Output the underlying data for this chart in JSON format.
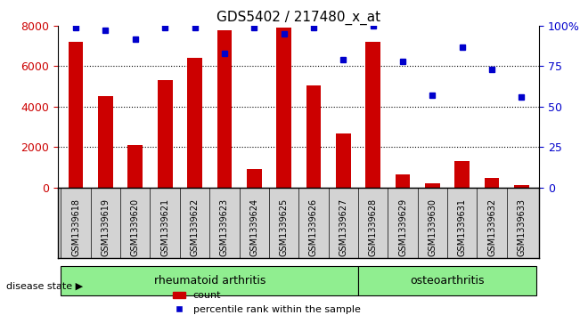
{
  "title": "GDS5402 / 217480_x_at",
  "samples": [
    "GSM1339618",
    "GSM1339619",
    "GSM1339620",
    "GSM1339621",
    "GSM1339622",
    "GSM1339623",
    "GSM1339624",
    "GSM1339625",
    "GSM1339626",
    "GSM1339627",
    "GSM1339628",
    "GSM1339629",
    "GSM1339630",
    "GSM1339631",
    "GSM1339632",
    "GSM1339633"
  ],
  "counts": [
    7200,
    4500,
    2100,
    5300,
    6400,
    7800,
    900,
    7900,
    5050,
    2650,
    7200,
    650,
    200,
    1300,
    450,
    100
  ],
  "percentiles": [
    99,
    97,
    92,
    99,
    99,
    83,
    99,
    95,
    99,
    79,
    100,
    78,
    57,
    87,
    73,
    56
  ],
  "groups": [
    {
      "label": "rheumatoid arthritis",
      "start": 0,
      "end": 10,
      "color": "#90ee90"
    },
    {
      "label": "osteoarthritis",
      "start": 10,
      "end": 16,
      "color": "#90ee90"
    }
  ],
  "bar_color": "#cc0000",
  "dot_color": "#0000cc",
  "ylim_left": [
    0,
    8000
  ],
  "ylim_right": [
    0,
    100
  ],
  "yticks_left": [
    0,
    2000,
    4000,
    6000,
    8000
  ],
  "yticks_right": [
    0,
    25,
    50,
    75,
    100
  ],
  "grid_color": "#000000",
  "bg_color": "#ffffff",
  "tick_label_color_left": "#cc0000",
  "tick_label_color_right": "#0000cc",
  "disease_state_label": "disease state",
  "legend_count_label": "count",
  "legend_percentile_label": "percentile rank within the sample",
  "xlabel_area_color": "#d3d3d3",
  "group_separator": 10
}
